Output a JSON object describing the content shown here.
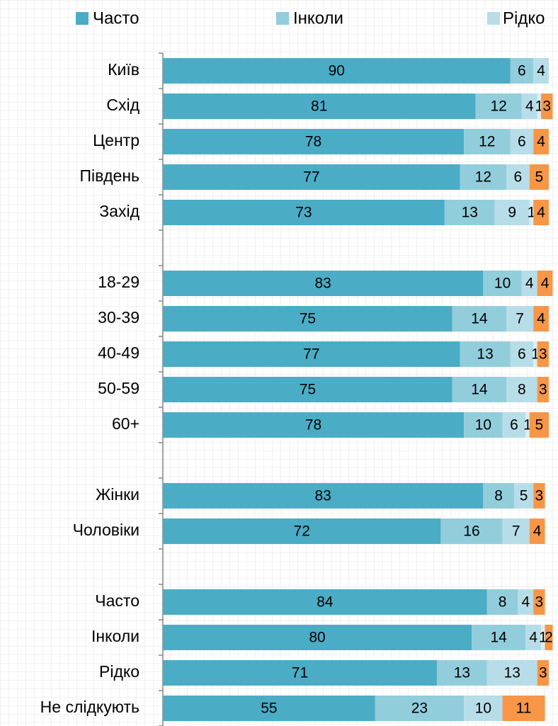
{
  "chart_data": {
    "type": "stacked-bar-horizontal",
    "categories": [
      "Київ",
      "Схід",
      "Центр",
      "Південь",
      "Захід",
      null,
      "18-29",
      "30-39",
      "40-49",
      "50-59",
      "60+",
      null,
      "Жінки",
      "Чоловіки",
      null,
      "Часто",
      "Інколи",
      "Рідко",
      "Не слідкують"
    ],
    "series": [
      {
        "name": "Часто",
        "color": "#4bacc6",
        "values": [
          90,
          81,
          78,
          77,
          73,
          null,
          83,
          75,
          77,
          75,
          78,
          null,
          83,
          72,
          null,
          84,
          80,
          71,
          55
        ]
      },
      {
        "name": "Інколи",
        "color": "#92cddc",
        "values": [
          6,
          12,
          12,
          12,
          13,
          null,
          10,
          14,
          13,
          14,
          10,
          null,
          8,
          16,
          null,
          8,
          14,
          13,
          23
        ]
      },
      {
        "name": "Рідко",
        "color": "#b7dde8",
        "values": [
          4,
          4,
          6,
          6,
          9,
          null,
          4,
          7,
          6,
          8,
          6,
          null,
          5,
          7,
          null,
          4,
          4,
          13,
          10
        ]
      },
      {
        "color": "#dbeef4",
        "values": [
          null,
          1,
          null,
          null,
          1,
          null,
          null,
          null,
          1,
          null,
          1,
          null,
          null,
          null,
          null,
          null,
          1,
          null,
          null
        ]
      },
      {
        "color": "#f79646",
        "values": [
          null,
          3,
          4,
          5,
          4,
          null,
          4,
          4,
          3,
          3,
          5,
          null,
          3,
          4,
          null,
          3,
          2,
          3,
          11
        ]
      }
    ],
    "xlim": [
      0,
      100
    ]
  }
}
